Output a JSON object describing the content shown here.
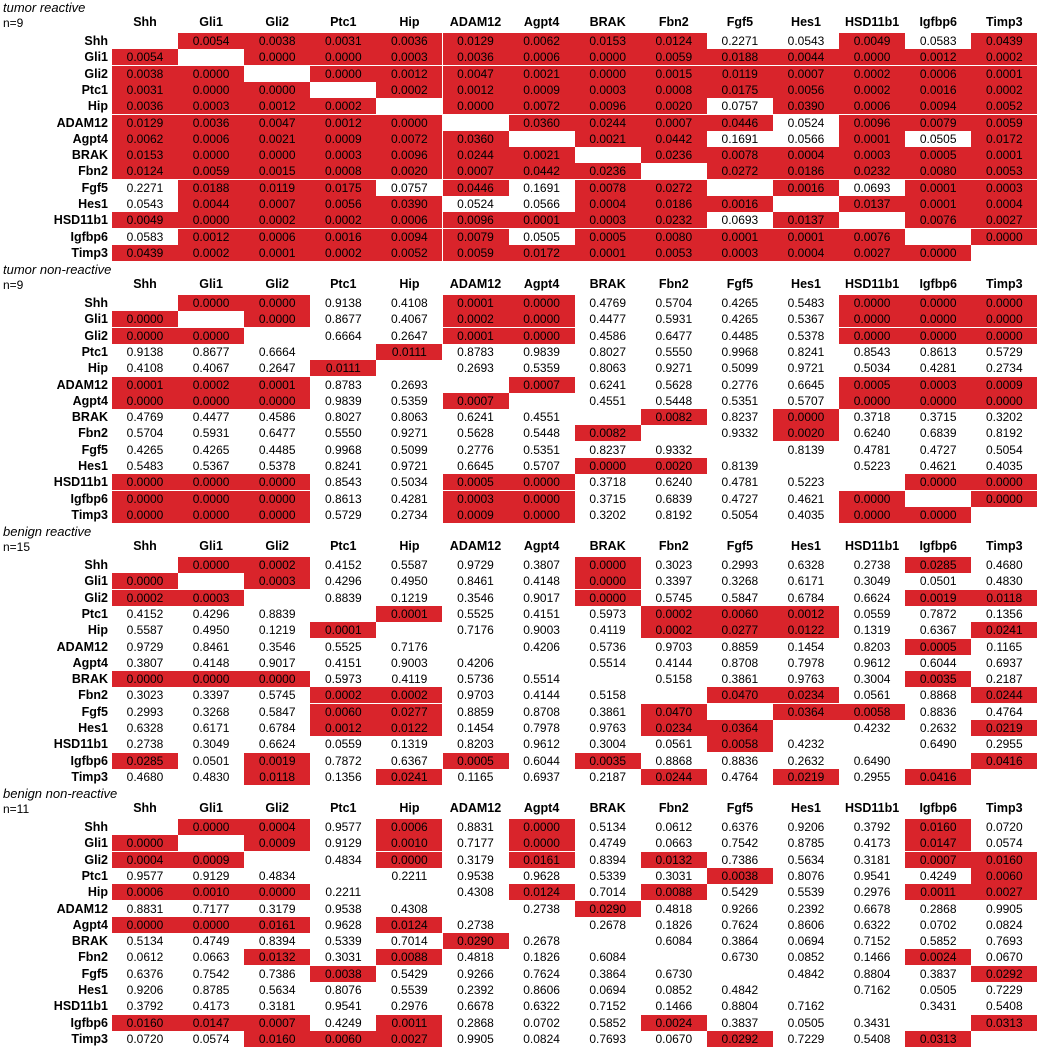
{
  "genes": [
    "Shh",
    "Gli1",
    "Gli2",
    "Ptc1",
    "Hip",
    "ADAM12",
    "Agpt4",
    "BRAK",
    "Fbn2",
    "Fgf5",
    "Hes1",
    "HSD11b1",
    "Igfbp6",
    "Timp3"
  ],
  "colors": {
    "significant": "#d9242b",
    "background": "#ffffff",
    "text": "#000000"
  },
  "chart_data": [
    {
      "type": "table",
      "title": "tumor reactive",
      "n_label": "n=9",
      "matrix": [
        [
          "",
          "0.0054",
          "0.0038",
          "0.0031",
          "0.0036",
          "0.0129",
          "0.0062",
          "0.0153",
          "0.0124",
          "0.2271",
          "0.0543",
          "0.0049",
          "0.0583",
          "0.0439"
        ],
        [
          "0.0054",
          "",
          "0.0000",
          "0.0000",
          "0.0003",
          "0.0036",
          "0.0006",
          "0.0000",
          "0.0059",
          "0.0188",
          "0.0044",
          "0.0000",
          "0.0012",
          "0.0002"
        ],
        [
          "0.0038",
          "0.0000",
          "",
          "0.0000",
          "0.0012",
          "0.0047",
          "0.0021",
          "0.0000",
          "0.0015",
          "0.0119",
          "0.0007",
          "0.0002",
          "0.0006",
          "0.0001"
        ],
        [
          "0.0031",
          "0.0000",
          "0.0000",
          "",
          "0.0002",
          "0.0012",
          "0.0009",
          "0.0003",
          "0.0008",
          "0.0175",
          "0.0056",
          "0.0002",
          "0.0016",
          "0.0002"
        ],
        [
          "0.0036",
          "0.0003",
          "0.0012",
          "0.0002",
          "",
          "0.0000",
          "0.0072",
          "0.0096",
          "0.0020",
          "0.0757",
          "0.0390",
          "0.0006",
          "0.0094",
          "0.0052"
        ],
        [
          "0.0129",
          "0.0036",
          "0.0047",
          "0.0012",
          "0.0000",
          "",
          "0.0360",
          "0.0244",
          "0.0007",
          "0.0446",
          "0.0524",
          "0.0096",
          "0.0079",
          "0.0059"
        ],
        [
          "0.0062",
          "0.0006",
          "0.0021",
          "0.0009",
          "0.0072",
          "0.0360",
          "",
          "0.0021",
          "0.0442",
          "0.1691",
          "0.0566",
          "0.0001",
          "0.0505",
          "0.0172"
        ],
        [
          "0.0153",
          "0.0000",
          "0.0000",
          "0.0003",
          "0.0096",
          "0.0244",
          "0.0021",
          "",
          "0.0236",
          "0.0078",
          "0.0004",
          "0.0003",
          "0.0005",
          "0.0001"
        ],
        [
          "0.0124",
          "0.0059",
          "0.0015",
          "0.0008",
          "0.0020",
          "0.0007",
          "0.0442",
          "0.0236",
          "",
          "0.0272",
          "0.0186",
          "0.0232",
          "0.0080",
          "0.0053"
        ],
        [
          "0.2271",
          "0.0188",
          "0.0119",
          "0.0175",
          "0.0757",
          "0.0446",
          "0.1691",
          "0.0078",
          "0.0272",
          "",
          "0.0016",
          "0.0693",
          "0.0001",
          "0.0003"
        ],
        [
          "0.0543",
          "0.0044",
          "0.0007",
          "0.0056",
          "0.0390",
          "0.0524",
          "0.0566",
          "0.0004",
          "0.0186",
          "0.0016",
          "",
          "0.0137",
          "0.0001",
          "0.0004"
        ],
        [
          "0.0049",
          "0.0000",
          "0.0002",
          "0.0002",
          "0.0006",
          "0.0096",
          "0.0001",
          "0.0003",
          "0.0232",
          "0.0693",
          "0.0137",
          "",
          "0.0076",
          "0.0027"
        ],
        [
          "0.0583",
          "0.0012",
          "0.0006",
          "0.0016",
          "0.0094",
          "0.0079",
          "0.0505",
          "0.0005",
          "0.0080",
          "0.0001",
          "0.0001",
          "0.0076",
          "",
          "0.0000"
        ],
        [
          "0.0439",
          "0.0002",
          "0.0001",
          "0.0002",
          "0.0052",
          "0.0059",
          "0.0172",
          "0.0001",
          "0.0053",
          "0.0003",
          "0.0004",
          "0.0027",
          "0.0000",
          ""
        ]
      ]
    },
    {
      "type": "table",
      "title": "tumor non-reactive",
      "n_label": "n=9",
      "matrix": [
        [
          "",
          "0.0000",
          "0.0000",
          "0.9138",
          "0.4108",
          "0.0001",
          "0.0000",
          "0.4769",
          "0.5704",
          "0.4265",
          "0.5483",
          "0.0000",
          "0.0000",
          "0.0000"
        ],
        [
          "0.0000",
          "",
          "0.0000",
          "0.8677",
          "0.4067",
          "0.0002",
          "0.0000",
          "0.4477",
          "0.5931",
          "0.4265",
          "0.5367",
          "0.0000",
          "0.0000",
          "0.0000"
        ],
        [
          "0.0000",
          "0.0000",
          "",
          "0.6664",
          "0.2647",
          "0.0001",
          "0.0000",
          "0.4586",
          "0.6477",
          "0.4485",
          "0.5378",
          "0.0000",
          "0.0000",
          "0.0000"
        ],
        [
          "0.9138",
          "0.8677",
          "0.6664",
          "",
          "0.0111",
          "0.8783",
          "0.9839",
          "0.8027",
          "0.5550",
          "0.9968",
          "0.8241",
          "0.8543",
          "0.8613",
          "0.5729"
        ],
        [
          "0.4108",
          "0.4067",
          "0.2647",
          "0.0111",
          "",
          "0.2693",
          "0.5359",
          "0.8063",
          "0.9271",
          "0.5099",
          "0.9721",
          "0.5034",
          "0.4281",
          "0.2734"
        ],
        [
          "0.0001",
          "0.0002",
          "0.0001",
          "0.8783",
          "0.2693",
          "",
          "0.0007",
          "0.6241",
          "0.5628",
          "0.2776",
          "0.6645",
          "0.0005",
          "0.0003",
          "0.0009"
        ],
        [
          "0.0000",
          "0.0000",
          "0.0000",
          "0.9839",
          "0.5359",
          "0.0007",
          "",
          "0.4551",
          "0.5448",
          "0.5351",
          "0.5707",
          "0.0000",
          "0.0000",
          "0.0000"
        ],
        [
          "0.4769",
          "0.4477",
          "0.4586",
          "0.8027",
          "0.8063",
          "0.6241",
          "0.4551",
          "",
          "0.0082",
          "0.8237",
          "0.0000",
          "0.3718",
          "0.3715",
          "0.3202"
        ],
        [
          "0.5704",
          "0.5931",
          "0.6477",
          "0.5550",
          "0.9271",
          "0.5628",
          "0.5448",
          "0.0082",
          "",
          "0.9332",
          "0.0020",
          "0.6240",
          "0.6839",
          "0.8192"
        ],
        [
          "0.4265",
          "0.4265",
          "0.4485",
          "0.9968",
          "0.5099",
          "0.2776",
          "0.5351",
          "0.8237",
          "0.9332",
          "",
          "0.8139",
          "0.4781",
          "0.4727",
          "0.5054"
        ],
        [
          "0.5483",
          "0.5367",
          "0.5378",
          "0.8241",
          "0.9721",
          "0.6645",
          "0.5707",
          "0.0000",
          "0.0020",
          "0.8139",
          "",
          "0.5223",
          "0.4621",
          "0.4035"
        ],
        [
          "0.0000",
          "0.0000",
          "0.0000",
          "0.8543",
          "0.5034",
          "0.0005",
          "0.0000",
          "0.3718",
          "0.6240",
          "0.4781",
          "0.5223",
          "",
          "0.0000",
          "0.0000"
        ],
        [
          "0.0000",
          "0.0000",
          "0.0000",
          "0.8613",
          "0.4281",
          "0.0003",
          "0.0000",
          "0.3715",
          "0.6839",
          "0.4727",
          "0.4621",
          "0.0000",
          "",
          "0.0000"
        ],
        [
          "0.0000",
          "0.0000",
          "0.0000",
          "0.5729",
          "0.2734",
          "0.0009",
          "0.0000",
          "0.3202",
          "0.8192",
          "0.5054",
          "0.4035",
          "0.0000",
          "0.0000",
          ""
        ]
      ]
    },
    {
      "type": "table",
      "title": "benign reactive",
      "n_label": "n=15",
      "matrix": [
        [
          "",
          "0.0000",
          "0.0002",
          "0.4152",
          "0.5587",
          "0.9729",
          "0.3807",
          "0.0000",
          "0.3023",
          "0.2993",
          "0.6328",
          "0.2738",
          "0.0285",
          "0.4680"
        ],
        [
          "0.0000",
          "",
          "0.0003",
          "0.4296",
          "0.4950",
          "0.8461",
          "0.4148",
          "0.0000",
          "0.3397",
          "0.3268",
          "0.6171",
          "0.3049",
          "0.0501",
          "0.4830"
        ],
        [
          "0.0002",
          "0.0003",
          "",
          "0.8839",
          "0.1219",
          "0.3546",
          "0.9017",
          "0.0000",
          "0.5745",
          "0.5847",
          "0.6784",
          "0.6624",
          "0.0019",
          "0.0118"
        ],
        [
          "0.4152",
          "0.4296",
          "0.8839",
          "",
          "0.0001",
          "0.5525",
          "0.4151",
          "0.5973",
          "0.0002",
          "0.0060",
          "0.0012",
          "0.0559",
          "0.7872",
          "0.1356"
        ],
        [
          "0.5587",
          "0.4950",
          "0.1219",
          "0.0001",
          "",
          "0.7176",
          "0.9003",
          "0.4119",
          "0.0002",
          "0.0277",
          "0.0122",
          "0.1319",
          "0.6367",
          "0.0241"
        ],
        [
          "0.9729",
          "0.8461",
          "0.3546",
          "0.5525",
          "0.7176",
          "",
          "0.4206",
          "0.5736",
          "0.9703",
          "0.8859",
          "0.1454",
          "0.8203",
          "0.0005",
          "0.1165"
        ],
        [
          "0.3807",
          "0.4148",
          "0.9017",
          "0.4151",
          "0.9003",
          "0.4206",
          "",
          "0.5514",
          "0.4144",
          "0.8708",
          "0.7978",
          "0.9612",
          "0.6044",
          "0.6937"
        ],
        [
          "0.0000",
          "0.0000",
          "0.0000",
          "0.5973",
          "0.4119",
          "0.5736",
          "0.5514",
          "",
          "0.5158",
          "0.3861",
          "0.9763",
          "0.3004",
          "0.0035",
          "0.2187"
        ],
        [
          "0.3023",
          "0.3397",
          "0.5745",
          "0.0002",
          "0.0002",
          "0.9703",
          "0.4144",
          "0.5158",
          "",
          "0.0470",
          "0.0234",
          "0.0561",
          "0.8868",
          "0.0244"
        ],
        [
          "0.2993",
          "0.3268",
          "0.5847",
          "0.0060",
          "0.0277",
          "0.8859",
          "0.8708",
          "0.3861",
          "0.0470",
          "",
          "0.0364",
          "0.0058",
          "0.8836",
          "0.4764"
        ],
        [
          "0.6328",
          "0.6171",
          "0.6784",
          "0.0012",
          "0.0122",
          "0.1454",
          "0.7978",
          "0.9763",
          "0.0234",
          "0.0364",
          "",
          "0.4232",
          "0.2632",
          "0.0219"
        ],
        [
          "0.2738",
          "0.3049",
          "0.6624",
          "0.0559",
          "0.1319",
          "0.8203",
          "0.9612",
          "0.3004",
          "0.0561",
          "0.0058",
          "0.4232",
          "",
          "0.6490",
          "0.2955"
        ],
        [
          "0.0285",
          "0.0501",
          "0.0019",
          "0.7872",
          "0.6367",
          "0.0005",
          "0.6044",
          "0.0035",
          "0.8868",
          "0.8836",
          "0.2632",
          "0.6490",
          "",
          "0.0416"
        ],
        [
          "0.4680",
          "0.4830",
          "0.0118",
          "0.1356",
          "0.0241",
          "0.1165",
          "0.6937",
          "0.2187",
          "0.0244",
          "0.4764",
          "0.0219",
          "0.2955",
          "0.0416",
          ""
        ]
      ]
    },
    {
      "type": "table",
      "title": "benign non-reactive",
      "n_label": "n=11",
      "matrix": [
        [
          "",
          "0.0000",
          "0.0004",
          "0.9577",
          "0.0006",
          "0.8831",
          "0.0000",
          "0.5134",
          "0.0612",
          "0.6376",
          "0.9206",
          "0.3792",
          "0.0160",
          "0.0720"
        ],
        [
          "0.0000",
          "",
          "0.0009",
          "0.9129",
          "0.0010",
          "0.7177",
          "0.0000",
          "0.4749",
          "0.0663",
          "0.7542",
          "0.8785",
          "0.4173",
          "0.0147",
          "0.0574"
        ],
        [
          "0.0004",
          "0.0009",
          "",
          "0.4834",
          "0.0000",
          "0.3179",
          "0.0161",
          "0.8394",
          "0.0132",
          "0.7386",
          "0.5634",
          "0.3181",
          "0.0007",
          "0.0160"
        ],
        [
          "0.9577",
          "0.9129",
          "0.4834",
          "",
          "0.2211",
          "0.9538",
          "0.9628",
          "0.5339",
          "0.3031",
          "0.0038",
          "0.8076",
          "0.9541",
          "0.4249",
          "0.0060"
        ],
        [
          "0.0006",
          "0.0010",
          "0.0000",
          "0.2211",
          "",
          "0.4308",
          "0.0124",
          "0.7014",
          "0.0088",
          "0.5429",
          "0.5539",
          "0.2976",
          "0.0011",
          "0.0027"
        ],
        [
          "0.8831",
          "0.7177",
          "0.3179",
          "0.9538",
          "0.4308",
          "",
          "0.2738",
          "0.0290",
          "0.4818",
          "0.9266",
          "0.2392",
          "0.6678",
          "0.2868",
          "0.9905"
        ],
        [
          "0.0000",
          "0.0000",
          "0.0161",
          "0.9628",
          "0.0124",
          "0.2738",
          "",
          "0.2678",
          "0.1826",
          "0.7624",
          "0.8606",
          "0.6322",
          "0.0702",
          "0.0824"
        ],
        [
          "0.5134",
          "0.4749",
          "0.8394",
          "0.5339",
          "0.7014",
          "0.0290",
          "0.2678",
          "",
          "0.6084",
          "0.3864",
          "0.0694",
          "0.7152",
          "0.5852",
          "0.7693"
        ],
        [
          "0.0612",
          "0.0663",
          "0.0132",
          "0.3031",
          "0.0088",
          "0.4818",
          "0.1826",
          "0.6084",
          "",
          "0.6730",
          "0.0852",
          "0.1466",
          "0.0024",
          "0.0670"
        ],
        [
          "0.6376",
          "0.7542",
          "0.7386",
          "0.0038",
          "0.5429",
          "0.9266",
          "0.7624",
          "0.3864",
          "0.6730",
          "",
          "0.4842",
          "0.8804",
          "0.3837",
          "0.0292"
        ],
        [
          "0.9206",
          "0.8785",
          "0.5634",
          "0.8076",
          "0.5539",
          "0.2392",
          "0.8606",
          "0.0694",
          "0.0852",
          "0.4842",
          "",
          "0.7162",
          "0.0505",
          "0.7229"
        ],
        [
          "0.3792",
          "0.4173",
          "0.3181",
          "0.9541",
          "0.2976",
          "0.6678",
          "0.6322",
          "0.7152",
          "0.1466",
          "0.8804",
          "0.7162",
          "",
          "0.3431",
          "0.5408"
        ],
        [
          "0.0160",
          "0.0147",
          "0.0007",
          "0.4249",
          "0.0011",
          "0.2868",
          "0.0702",
          "0.5852",
          "0.0024",
          "0.3837",
          "0.0505",
          "0.3431",
          "",
          "0.0313"
        ],
        [
          "0.0720",
          "0.0574",
          "0.0160",
          "0.0060",
          "0.0027",
          "0.9905",
          "0.0824",
          "0.7693",
          "0.0670",
          "0.0292",
          "0.7229",
          "0.5408",
          "0.0313",
          ""
        ]
      ]
    }
  ]
}
